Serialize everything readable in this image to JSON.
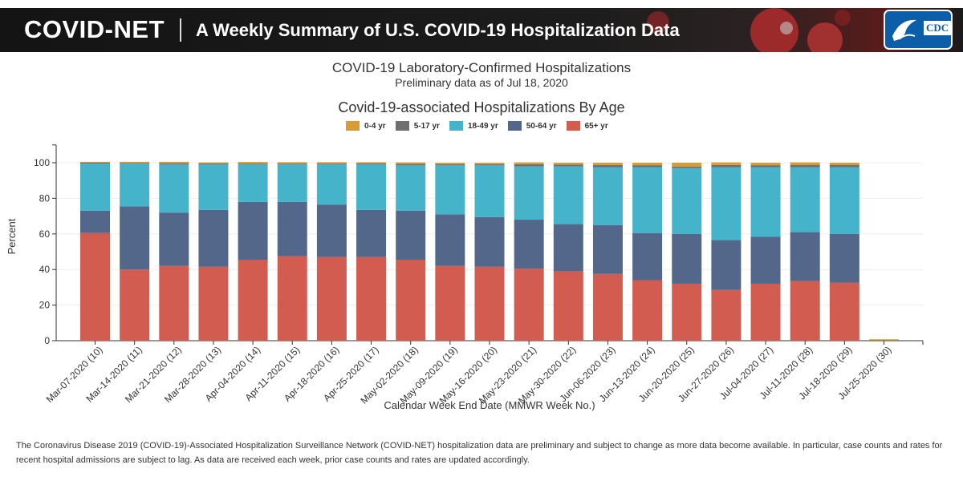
{
  "banner": {
    "brand": "COVID-NET",
    "title": "A Weekly Summary of U.S. COVID-19 Hospitalization Data",
    "logo_text": "CDC"
  },
  "chart_data": {
    "type": "bar",
    "stacked": true,
    "title": "COVID-19 Laboratory-Confirmed Hospitalizations",
    "subtitle": "Preliminary data as of Jul 18, 2020",
    "heading": "Covid-19-associated Hospitalizations By Age",
    "xlabel": "Calendar Week End Date (MMWR Week No.)",
    "ylabel": "Percent",
    "ylim": [
      0,
      110
    ],
    "yticks": [
      0,
      20,
      40,
      60,
      80,
      100
    ],
    "grid": true,
    "legend_position": "top",
    "categories": [
      "Mar-07-2020 (10)",
      "Mar-14-2020 (11)",
      "Mar-21-2020 (12)",
      "Mar-28-2020 (13)",
      "Apr-04-2020 (14)",
      "Apr-11-2020 (15)",
      "Apr-18-2020 (16)",
      "Apr-25-2020 (17)",
      "May-02-2020 (18)",
      "May-09-2020 (19)",
      "May-16-2020 (20)",
      "May-23-2020 (21)",
      "May-30-2020 (22)",
      "Jun-06-2020 (23)",
      "Jun-13-2020 (24)",
      "Jun-20-2020 (25)",
      "Jun-27-2020 (26)",
      "Jul-04-2020 (27)",
      "Jul-11-2020 (28)",
      "Jul-18-2020 (29)",
      "Jul-25-2020 (30)"
    ],
    "series": [
      {
        "name": "65+ yr",
        "color": "#d35c50",
        "values": [
          60.5,
          40.0,
          42.0,
          41.5,
          45.5,
          47.5,
          47.0,
          47.0,
          45.5,
          42.0,
          41.5,
          40.5,
          39.0,
          37.5,
          34.0,
          32.0,
          28.5,
          32.0,
          33.5,
          32.5,
          0
        ]
      },
      {
        "name": "50-64 yr",
        "color": "#52678a",
        "values": [
          12.5,
          35.5,
          30.0,
          32.0,
          32.5,
          30.5,
          29.5,
          26.5,
          27.5,
          29.0,
          28.0,
          27.5,
          26.5,
          27.5,
          26.5,
          28.0,
          28.0,
          26.5,
          27.5,
          27.5,
          0
        ]
      },
      {
        "name": "18-49 yr",
        "color": "#45b3c9",
        "values": [
          26.5,
          24.0,
          27.0,
          25.5,
          21.0,
          21.0,
          22.5,
          25.5,
          25.5,
          27.5,
          29.0,
          30.0,
          32.5,
          32.5,
          37.0,
          37.0,
          41.0,
          39.0,
          36.5,
          37.5,
          0
        ]
      },
      {
        "name": "5-17 yr",
        "color": "#6f6f6f",
        "values": [
          0.5,
          0.3,
          0.7,
          0.6,
          0.5,
          0.5,
          0.5,
          0.6,
          0.8,
          0.7,
          0.7,
          1.2,
          1.0,
          1.2,
          1.1,
          0.9,
          1.2,
          1.1,
          1.3,
          1.3,
          0
        ]
      },
      {
        "name": "0-4 yr",
        "color": "#d89b35",
        "values": [
          0.5,
          0.7,
          0.8,
          0.6,
          0.9,
          0.8,
          0.8,
          0.7,
          0.9,
          0.8,
          0.8,
          1.0,
          1.0,
          1.3,
          1.4,
          2.1,
          1.5,
          1.4,
          1.4,
          1.2,
          0
        ]
      }
    ],
    "legend_order": [
      "0-4 yr",
      "5-17 yr",
      "18-49 yr",
      "50-64 yr",
      "65+ yr"
    ]
  },
  "footnote": "The Coronavirus Disease 2019 (COVID-19)-Associated Hospitalization Surveillance Network (COVID-NET) hospitalization data are preliminary and subject to change as more data become available. In particular, case counts and rates for recent hospital admissions are subject to lag. As data are received each week, prior case counts and rates are updated accordingly."
}
